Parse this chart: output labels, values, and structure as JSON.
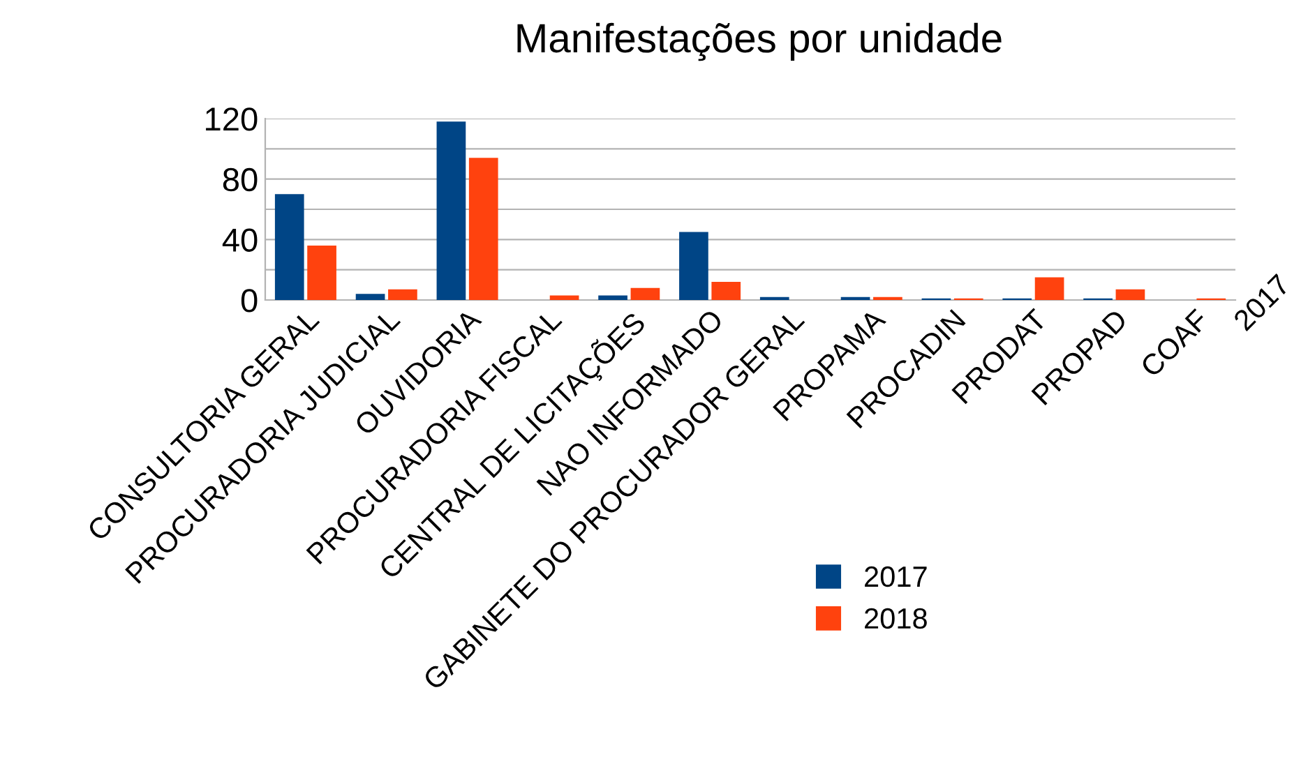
{
  "chart_data": {
    "type": "bar",
    "title": "Manifestações por unidade",
    "categories": [
      "CONSULTORIA GERAL",
      "PROCURADORIA JUDICIAL",
      "OUVIDORIA",
      "PROCURADORIA FISCAL",
      "CENTRAL DE LICITAÇÕES",
      "NAO INFORMADO",
      "GABINETE DO PROCURADOR GERAL",
      "PROPAMA",
      "PROCADIN",
      "PRODAT",
      "PROPAD",
      "COAF"
    ],
    "series": [
      {
        "name": "2017",
        "color": "#004586",
        "values": [
          70,
          4,
          118,
          0,
          3,
          45,
          2,
          2,
          1,
          1,
          1,
          0
        ]
      },
      {
        "name": "2018",
        "color": "#ff420e",
        "values": [
          36,
          7,
          94,
          3,
          8,
          12,
          0,
          2,
          1,
          15,
          7,
          1
        ]
      }
    ],
    "ylim": [
      0,
      120
    ],
    "yticks": [
      0,
      {
        "value": 20,
        "label": null
      },
      40,
      {
        "value": 60,
        "label": null
      },
      80,
      {
        "value": 100,
        "label": null
      },
      120
    ],
    "grid": "y",
    "legend": "bottom",
    "annotations": [
      "2017"
    ]
  }
}
